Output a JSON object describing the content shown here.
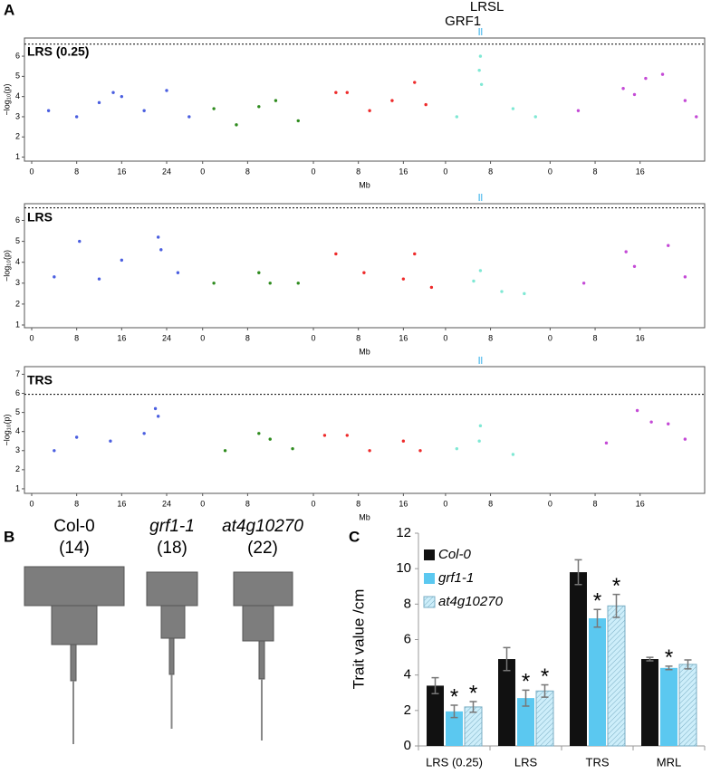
{
  "panel_labels": [
    "A",
    "B",
    "C"
  ],
  "panel_b": {
    "items": [
      {
        "name": "Col-0",
        "count_label": "(14)"
      },
      {
        "name": "grf1-1",
        "count_label": "(18)"
      },
      {
        "name": "at4g10270",
        "count_label": "(22)"
      }
    ]
  },
  "chart_data": [
    {
      "type": "manhattan",
      "title": "LRS (0.25)",
      "ylabel": "−log₁₀(p)",
      "xlabel": "Mb",
      "ylim": [
        0.8,
        6.9
      ],
      "yticks": [
        1,
        2,
        3,
        4,
        5,
        6
      ],
      "threshold": 6.6,
      "series": [
        {
          "color": "#4a5ee0",
          "xlim": [
            0,
            30.4
          ],
          "xticks": [
            0,
            8,
            16,
            24
          ],
          "x": [
            3,
            8,
            12,
            14.5,
            16,
            20,
            24,
            28
          ],
          "y": [
            3.3,
            3.0,
            3.7,
            4.2,
            4.0,
            3.3,
            4.3,
            3.0
          ]
        },
        {
          "color": "#2e8b1e",
          "xlim": [
            0,
            19.7
          ],
          "xticks": [
            0,
            8
          ],
          "x": [
            2,
            6,
            10,
            13,
            17
          ],
          "y": [
            3.4,
            2.6,
            3.5,
            3.8,
            2.8
          ]
        },
        {
          "color": "#ee2a2a",
          "xlim": [
            0,
            23.5
          ],
          "xticks": [
            0,
            8,
            16
          ],
          "x": [
            4,
            6,
            10,
            14,
            18,
            20
          ],
          "y": [
            4.2,
            4.2,
            3.3,
            3.8,
            4.7,
            3.6
          ]
        },
        {
          "color": "#7fe8d4",
          "xlim": [
            0,
            18.6
          ],
          "xticks": [
            0,
            8
          ],
          "x": [
            2,
            6,
            6.2,
            6.4,
            12,
            16
          ],
          "y": [
            3.0,
            5.3,
            6.0,
            4.6,
            3.4,
            3.0
          ],
          "markers": [
            {
              "label": "GRF1",
              "x": 6.0
            },
            {
              "label": "LRSL",
              "x": 6.4
            }
          ]
        },
        {
          "color": "#c44ad6",
          "xlim": [
            0,
            27.0
          ],
          "xticks": [
            0,
            8,
            16
          ],
          "x": [
            5,
            13,
            15,
            17,
            20,
            24,
            26
          ],
          "y": [
            3.3,
            4.4,
            4.1,
            4.9,
            5.1,
            3.8,
            3.0
          ]
        }
      ]
    },
    {
      "type": "manhattan",
      "title": "LRS",
      "ylabel": "−log₁₀(p)",
      "xlabel": "Mb",
      "ylim": [
        0.87,
        6.8
      ],
      "yticks": [
        1,
        2,
        3,
        4,
        5,
        6
      ],
      "threshold": 6.6,
      "series": [
        {
          "color": "#4a5ee0",
          "xlim": [
            0,
            30.4
          ],
          "xticks": [
            0,
            8,
            16,
            24
          ],
          "x": [
            4,
            8.5,
            12,
            16,
            22.5,
            23,
            26
          ],
          "y": [
            3.3,
            5.0,
            3.2,
            4.1,
            5.2,
            4.6,
            3.5
          ]
        },
        {
          "color": "#2e8b1e",
          "xlim": [
            0,
            19.7
          ],
          "xticks": [
            0,
            8
          ],
          "x": [
            2,
            10,
            12,
            17
          ],
          "y": [
            3.0,
            3.5,
            3.0,
            3.0
          ]
        },
        {
          "color": "#ee2a2a",
          "xlim": [
            0,
            23.5
          ],
          "xticks": [
            0,
            8,
            16
          ],
          "x": [
            4,
            9,
            16,
            18,
            21
          ],
          "y": [
            4.4,
            3.5,
            3.2,
            4.4,
            2.8
          ]
        },
        {
          "color": "#7fe8d4",
          "xlim": [
            0,
            18.6
          ],
          "xticks": [
            0,
            8
          ],
          "x": [
            5,
            6.2,
            10,
            14
          ],
          "y": [
            3.1,
            3.6,
            2.6,
            2.5
          ],
          "markers": [
            {
              "x": 6.0
            },
            {
              "x": 6.4
            }
          ]
        },
        {
          "color": "#c44ad6",
          "xlim": [
            0,
            27.0
          ],
          "xticks": [
            0,
            8,
            16
          ],
          "x": [
            6,
            13.5,
            15,
            21,
            24
          ],
          "y": [
            3.0,
            4.5,
            3.8,
            4.8,
            3.3
          ]
        }
      ]
    },
    {
      "type": "manhattan",
      "title": "TRS",
      "ylabel": "−log₁₀(p)",
      "xlabel": "Mb",
      "ylim": [
        0.76,
        7.4
      ],
      "yticks": [
        1,
        2,
        3,
        4,
        5,
        6,
        7
      ],
      "threshold": 5.95,
      "series": [
        {
          "color": "#4a5ee0",
          "xlim": [
            0,
            30.4
          ],
          "xticks": [
            0,
            8,
            16,
            24
          ],
          "x": [
            4,
            8,
            14,
            20,
            22,
            22.5
          ],
          "y": [
            3.0,
            3.7,
            3.5,
            3.9,
            5.2,
            4.8
          ]
        },
        {
          "color": "#2e8b1e",
          "xlim": [
            0,
            19.7
          ],
          "xticks": [
            0,
            8
          ],
          "x": [
            4,
            10,
            12,
            16
          ],
          "y": [
            3.0,
            3.9,
            3.6,
            3.1
          ]
        },
        {
          "color": "#ee2a2a",
          "xlim": [
            0,
            23.5
          ],
          "xticks": [
            0,
            8,
            16
          ],
          "x": [
            2,
            6,
            10,
            16,
            19
          ],
          "y": [
            3.8,
            3.8,
            3.0,
            3.5,
            3.0
          ]
        },
        {
          "color": "#7fe8d4",
          "xlim": [
            0,
            18.6
          ],
          "xticks": [
            0,
            8
          ],
          "x": [
            2,
            6,
            6.2,
            12
          ],
          "y": [
            3.1,
            3.5,
            4.3,
            2.8
          ],
          "markers": [
            {
              "x": 6.0
            },
            {
              "x": 6.4
            }
          ]
        },
        {
          "color": "#c44ad6",
          "xlim": [
            0,
            27.0
          ],
          "xticks": [
            0,
            8,
            16
          ],
          "x": [
            10,
            15.5,
            18,
            21,
            24
          ],
          "y": [
            3.4,
            5.1,
            4.5,
            4.4,
            3.6
          ]
        }
      ]
    },
    {
      "type": "bar",
      "ylabel": "Trait value /cm",
      "categories": [
        "LRS (0.25)",
        "LRS",
        "TRS",
        "MRL"
      ],
      "ylim": [
        0,
        12
      ],
      "yticks": [
        0,
        2,
        4,
        6,
        8,
        10,
        12
      ],
      "series": [
        {
          "name": "Col-0",
          "color": "#111111",
          "values": [
            3.4,
            4.9,
            9.8,
            4.9
          ],
          "errors": [
            0.45,
            0.65,
            0.7,
            0.1
          ]
        },
        {
          "name": "grf1-1",
          "color": "#5bc8f0",
          "values": [
            1.95,
            2.7,
            7.2,
            4.4
          ],
          "errors": [
            0.35,
            0.45,
            0.5,
            0.1
          ],
          "significance": [
            "*",
            "*",
            "*",
            "*"
          ]
        },
        {
          "name": "at4g10270",
          "color": "#cdeefa",
          "hatch": true,
          "values": [
            2.2,
            3.1,
            7.9,
            4.6
          ],
          "errors": [
            0.3,
            0.35,
            0.65,
            0.25
          ],
          "significance": [
            "*",
            "*",
            "*",
            null
          ]
        }
      ]
    }
  ]
}
